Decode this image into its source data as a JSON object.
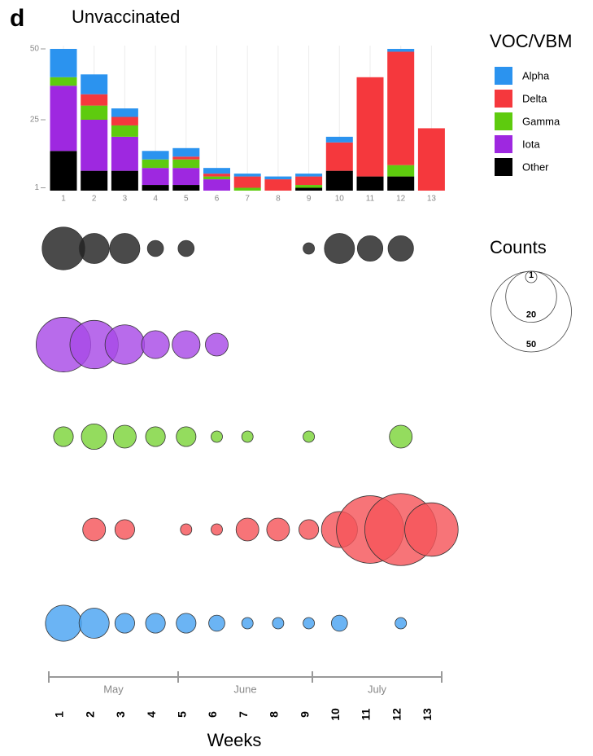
{
  "chart_data": {
    "type": "stacked-bar-bubble",
    "panel_label": "d",
    "title": "Unvaccinated",
    "legend_title": "VOC/VBM",
    "size_legend_title": "Counts",
    "size_legend": [
      1,
      20,
      50
    ],
    "xlabel": "Weeks",
    "categories": [
      "1",
      "2",
      "3",
      "4",
      "5",
      "6",
      "7",
      "8",
      "9",
      "10",
      "11",
      "12",
      "13"
    ],
    "months": [
      "May",
      "June",
      "July"
    ],
    "ylim": [
      0,
      50
    ],
    "yticks": [
      1,
      25,
      50
    ],
    "series": [
      {
        "name": "Alpha",
        "color": "#2b93ef",
        "values": [
          10,
          7,
          3,
          3,
          3,
          2,
          1,
          1,
          1,
          2,
          0,
          1,
          0
        ]
      },
      {
        "name": "Delta",
        "color": "#f5383d",
        "values": [
          0,
          4,
          3,
          0,
          1,
          1,
          4,
          4,
          3,
          10,
          35,
          40,
          22
        ]
      },
      {
        "name": "Gamma",
        "color": "#5ecb0e",
        "values": [
          3,
          5,
          4,
          3,
          3,
          1,
          1,
          0,
          1,
          0,
          0,
          4,
          0
        ]
      },
      {
        "name": "Iota",
        "color": "#9e28e0",
        "values": [
          23,
          18,
          12,
          6,
          6,
          4,
          0,
          0,
          0,
          0,
          0,
          0,
          0
        ]
      },
      {
        "name": "Other",
        "color": "#000000",
        "values": [
          14,
          7,
          7,
          2,
          2,
          0,
          0,
          0,
          1,
          7,
          5,
          5,
          0
        ]
      }
    ]
  }
}
